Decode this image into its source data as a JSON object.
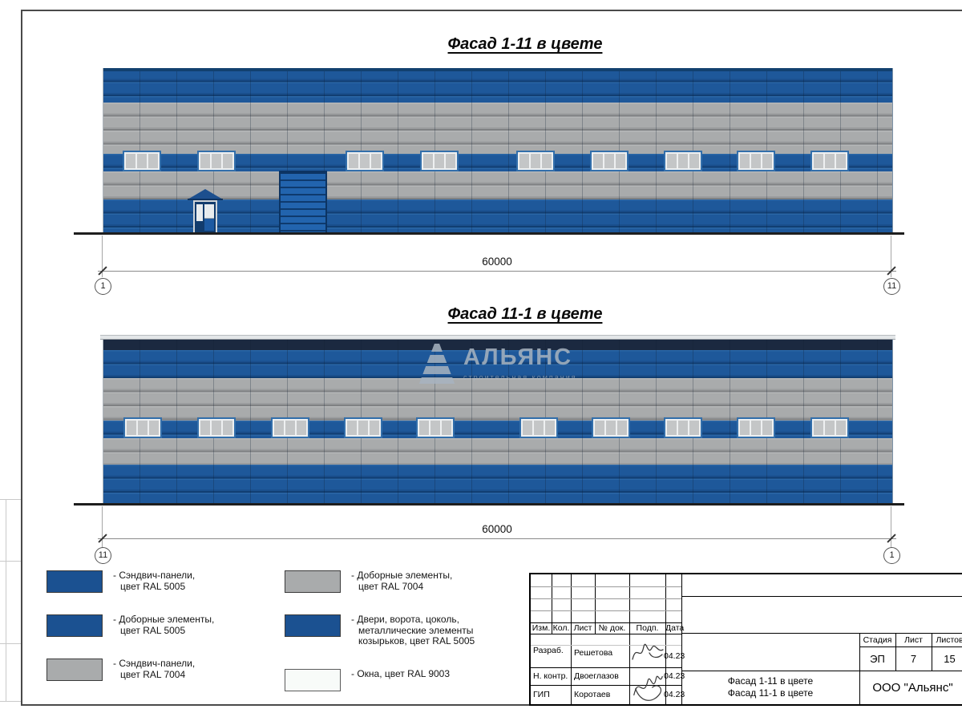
{
  "colors": {
    "panel_blue": "#1e589a",
    "panel_gray": "#a9abac",
    "parapet_navy": "#1b2940",
    "legend_blue": "#1b5191",
    "window_white": "#f8fbf9"
  },
  "facade1": {
    "title": "Фасад 1-11 в цвете",
    "dim_label": "60000",
    "axis_left": "1",
    "axis_right": "11",
    "window_width_pct": 4.88,
    "windows_pct": [
      2.44,
      11.89,
      30.69,
      40.14,
      52.34,
      61.69,
      71.04,
      80.28,
      89.63
    ]
  },
  "facade2": {
    "title": "Фасад 11-1 в цвете",
    "dim_label": "60000",
    "axis_left": "11",
    "axis_right": "1",
    "window_width_pct": 4.88,
    "windows_pct": [
      2.54,
      11.89,
      21.24,
      30.49,
      39.63,
      52.74,
      61.89,
      71.04,
      80.28,
      89.63
    ]
  },
  "watermark": {
    "name": "АЛЬЯНС",
    "subtitle": "строительная компания"
  },
  "legend": {
    "items": [
      {
        "swatch": "blue",
        "lines": [
          "- Сэндвич-панели,",
          "цвет RAL 5005"
        ]
      },
      {
        "swatch": "blue",
        "lines": [
          "- Доборные элементы,",
          "цвет RAL 5005"
        ]
      },
      {
        "swatch": "gray",
        "lines": [
          "- Сэндвич-панели,",
          "цвет RAL 7004"
        ]
      },
      {
        "swatch": "gray",
        "lines": [
          "- Доборные элементы,",
          "цвет RAL 7004"
        ]
      },
      {
        "swatch": "blue",
        "lines": [
          "- Двери, ворота, цоколь,",
          "металлические элементы",
          "козырьков, цвет RAL 5005"
        ]
      },
      {
        "swatch": "white",
        "lines": [
          "- Окна, цвет RAL 9003"
        ]
      }
    ]
  },
  "title_block": {
    "change_header": [
      "Изм.",
      "Кол.",
      "Лист",
      "№ док.",
      "Подп.",
      "Дата"
    ],
    "sign_rows": [
      {
        "role": "Разраб.",
        "name": "Решетова",
        "date": "04.23"
      },
      {
        "role": "Н. контр.",
        "name": "Двоеглазов",
        "date": "04.23"
      },
      {
        "role": "ГИП",
        "name": "Коротаев",
        "date": "04.23"
      }
    ],
    "stage_cols": [
      {
        "h": "Стадия",
        "v": "ЭП"
      },
      {
        "h": "Лист",
        "v": "7"
      },
      {
        "h": "Листов",
        "v": "15"
      }
    ],
    "doc_title": [
      "Фасад 1-11 в цвете",
      "Фасад 11-1 в цвете"
    ],
    "company": "ООО \"Альянс\""
  }
}
